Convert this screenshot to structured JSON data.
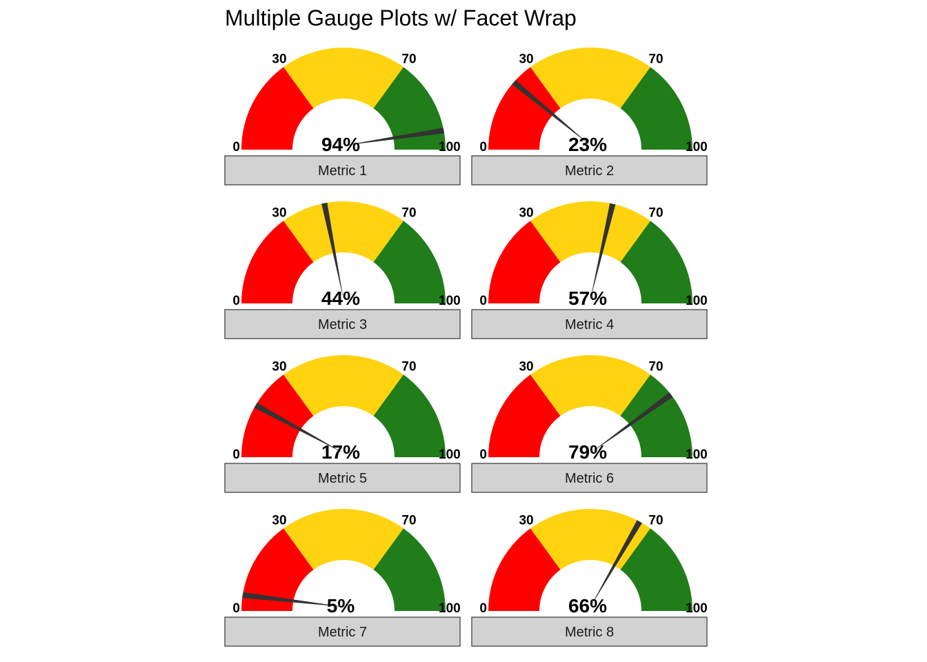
{
  "title": "Multiple Gauge Plots w/ Facet Wrap",
  "chart_data": {
    "type": "gauge",
    "title": "Multiple Gauge Plots w/ Facet Wrap",
    "scale": [
      0,
      100
    ],
    "ticks": [
      "0",
      "30",
      "70",
      "100"
    ],
    "tick_values": [
      0,
      30,
      70,
      100
    ],
    "bands": [
      {
        "from": 0,
        "to": 30,
        "color": "#ff0000"
      },
      {
        "from": 30,
        "to": 70,
        "color": "#ffd30f"
      },
      {
        "from": 70,
        "to": 100,
        "color": "#217c1a"
      }
    ],
    "needle_color": "#333333",
    "layout": "facet_wrap, 2 columns",
    "panels": [
      {
        "label": "Metric 1",
        "value": 94,
        "value_label": "94%"
      },
      {
        "label": "Metric 2",
        "value": 23,
        "value_label": "23%"
      },
      {
        "label": "Metric 3",
        "value": 44,
        "value_label": "44%"
      },
      {
        "label": "Metric 4",
        "value": 57,
        "value_label": "57%"
      },
      {
        "label": "Metric 5",
        "value": 17,
        "value_label": "17%"
      },
      {
        "label": "Metric 6",
        "value": 79,
        "value_label": "79%"
      },
      {
        "label": "Metric 7",
        "value": 5,
        "value_label": "5%"
      },
      {
        "label": "Metric 8",
        "value": 66,
        "value_label": "66%"
      }
    ]
  }
}
